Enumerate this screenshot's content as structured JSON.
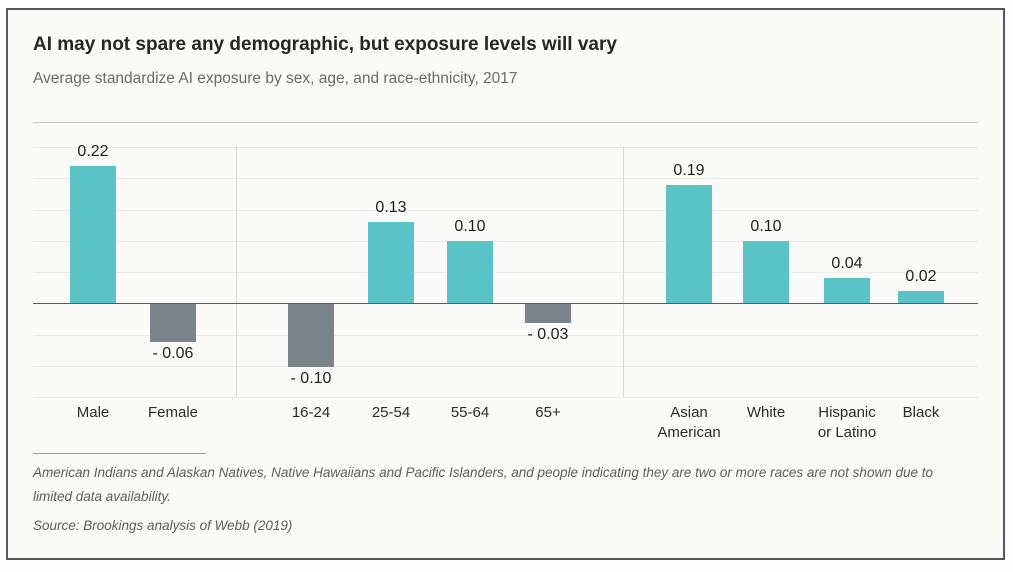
{
  "header": {
    "title": "AI may not spare any demographic, but exposure levels will vary",
    "subtitle": "Average standardize AI exposure by sex, age, and race-ethnicity, 2017"
  },
  "chart_data": {
    "type": "bar",
    "title": "AI may not spare any demographic, but exposure levels will vary",
    "subtitle": "Average standardize AI exposure by sex, age, and race-ethnicity, 2017",
    "xlabel": "",
    "ylabel": "",
    "ylim": [
      -0.15,
      0.25
    ],
    "gridline_step": 0.05,
    "grid": true,
    "legend": false,
    "colors": {
      "positive": "#5ac3c8",
      "negative": "#7b8489",
      "zero_line": "#5a5b5d",
      "gridline": "#ececea"
    },
    "groups": [
      {
        "name": "sex",
        "bars": [
          {
            "category": "Male",
            "label_lines": [
              "Male"
            ],
            "value": 0.22,
            "value_label": "0.22"
          },
          {
            "category": "Female",
            "label_lines": [
              "Female"
            ],
            "value": -0.06,
            "value_label": "- 0.06"
          }
        ]
      },
      {
        "name": "age",
        "bars": [
          {
            "category": "16-24",
            "label_lines": [
              "16-24"
            ],
            "value": -0.1,
            "value_label": "- 0.10"
          },
          {
            "category": "25-54",
            "label_lines": [
              "25-54"
            ],
            "value": 0.13,
            "value_label": "0.13"
          },
          {
            "category": "55-64",
            "label_lines": [
              "55-64"
            ],
            "value": 0.1,
            "value_label": "0.10"
          },
          {
            "category": "65+",
            "label_lines": [
              "65+"
            ],
            "value": -0.03,
            "value_label": "- 0.03"
          }
        ]
      },
      {
        "name": "race-ethnicity",
        "bars": [
          {
            "category": "Asian American",
            "label_lines": [
              "Asian",
              "American"
            ],
            "value": 0.19,
            "value_label": "0.19"
          },
          {
            "category": "White",
            "label_lines": [
              "White"
            ],
            "value": 0.1,
            "value_label": "0.10"
          },
          {
            "category": "Hispanic or Latino",
            "label_lines": [
              "Hispanic",
              "or Latino"
            ],
            "value": 0.04,
            "value_label": "0.04"
          },
          {
            "category": "Black",
            "label_lines": [
              "Black"
            ],
            "value": 0.02,
            "value_label": "0.02"
          }
        ]
      }
    ]
  },
  "footer": {
    "note": "American Indians and Alaskan Natives, Native Hawaiians and Pacific Islanders, and people indicating they are two or more races are not shown due to limited data availability.",
    "source": "Source: Brookings analysis of Webb (2019)"
  }
}
